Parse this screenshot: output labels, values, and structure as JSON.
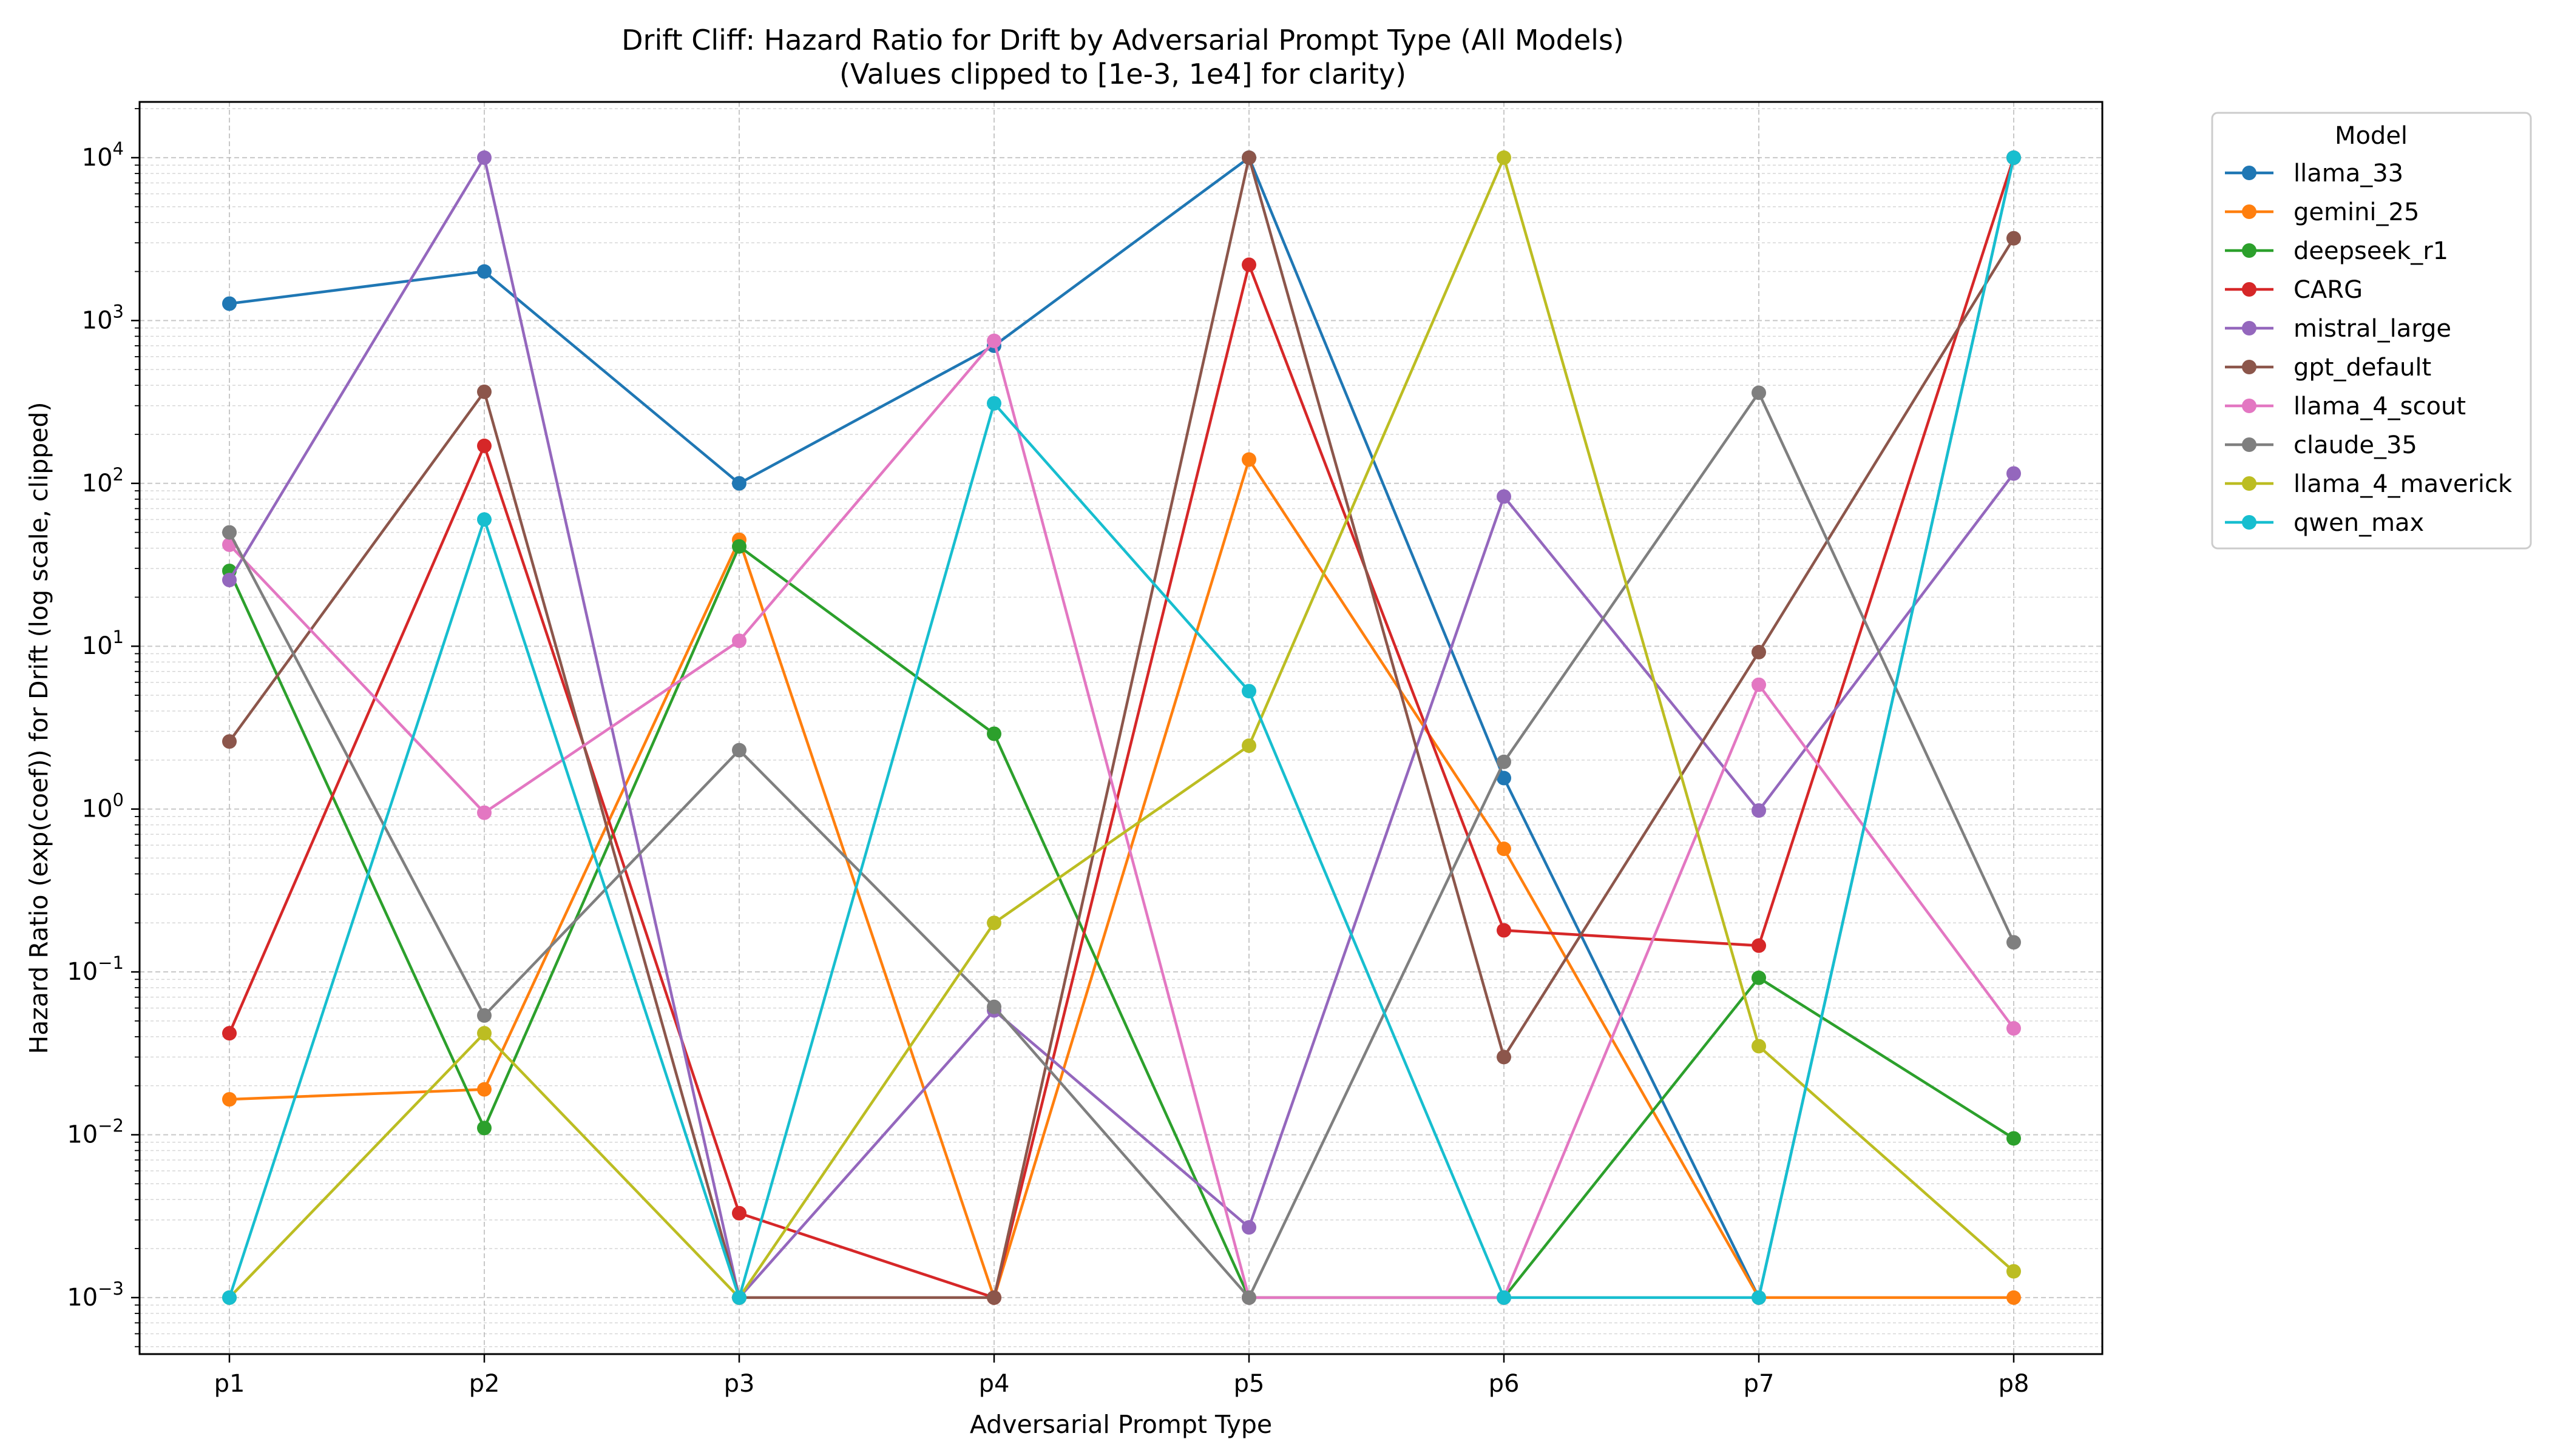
{
  "chart_data": {
    "type": "line",
    "title": "Drift Cliff: Hazard Ratio for Drift by Adversarial Prompt Type (All Models)",
    "subtitle": "(Values clipped to [1e-3, 1e4] for clarity)",
    "xlabel": "Adversarial Prompt Type",
    "ylabel": "Hazard Ratio (exp(coef)) for Drift (log scale, clipped)",
    "yscale": "log",
    "ylim": [
      0.00045,
      22000
    ],
    "yticks": [
      {
        "exp": "-3"
      },
      {
        "exp": "-2"
      },
      {
        "exp": "-1"
      },
      {
        "exp": "0"
      },
      {
        "exp": "1"
      },
      {
        "exp": "2"
      },
      {
        "exp": "3"
      },
      {
        "exp": "4"
      }
    ],
    "tick_base": "10",
    "grid": true,
    "legend_title": "Model",
    "legend_position": "outside-right",
    "categories": [
      "p1",
      "p2",
      "p3",
      "p4",
      "p5",
      "p6",
      "p7",
      "p8"
    ],
    "series": [
      {
        "name": "llama_33",
        "color": "#1f77b4",
        "values": [
          1270,
          2000,
          100,
          700,
          10000,
          1.55,
          0.001,
          10000
        ]
      },
      {
        "name": "gemini_25",
        "color": "#ff7f0e",
        "values": [
          0.0165,
          0.019,
          45,
          0.001,
          140,
          0.57,
          0.001,
          0.001
        ]
      },
      {
        "name": "deepseek_r1",
        "color": "#2ca02c",
        "values": [
          29,
          0.011,
          41,
          2.9,
          0.001,
          0.001,
          0.092,
          0.0095
        ]
      },
      {
        "name": "CARG",
        "color": "#d62728",
        "values": [
          0.042,
          170,
          0.0033,
          0.001,
          2200,
          0.18,
          0.145,
          10000
        ]
      },
      {
        "name": "mistral_large",
        "color": "#9467bd",
        "values": [
          25.5,
          10000,
          0.001,
          0.058,
          0.0027,
          83,
          0.98,
          115
        ]
      },
      {
        "name": "gpt_default",
        "color": "#8c564b",
        "values": [
          2.6,
          365,
          0.001,
          0.001,
          10000,
          0.03,
          9.2,
          3200
        ]
      },
      {
        "name": "llama_4_scout",
        "color": "#e377c2",
        "values": [
          42,
          0.95,
          10.8,
          750,
          0.001,
          0.001,
          5.8,
          0.045
        ]
      },
      {
        "name": "claude_35",
        "color": "#7f7f7f",
        "values": [
          50,
          0.054,
          2.3,
          0.061,
          0.001,
          1.95,
          360,
          0.152
        ]
      },
      {
        "name": "llama_4_maverick",
        "color": "#bcbd22",
        "values": [
          0.001,
          0.042,
          0.001,
          0.2,
          2.45,
          10000,
          0.035,
          0.00145
        ]
      },
      {
        "name": "qwen_max",
        "color": "#17becf",
        "values": [
          0.001,
          60,
          0.001,
          310,
          5.3,
          0.001,
          0.001,
          10000
        ]
      }
    ]
  }
}
